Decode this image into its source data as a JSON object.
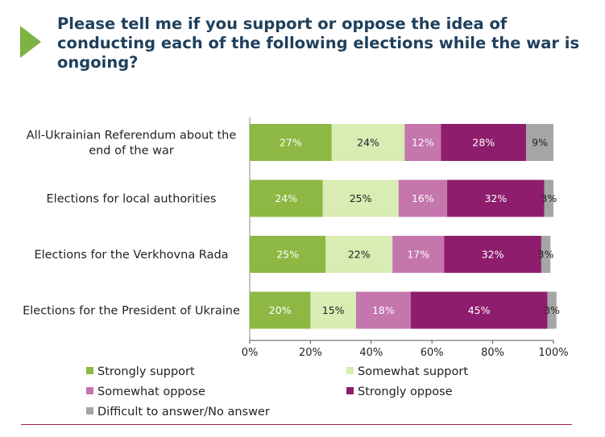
{
  "title": "Please tell me if you support or oppose the idea of conducting each of the following elections while the war is ongoing?",
  "colors": {
    "accent_arrow": "#7cb342",
    "title_text": "#1f3f5c",
    "footer_line": "#9d1e4f"
  },
  "chart_data": {
    "type": "bar",
    "orientation": "horizontal",
    "stacked": true,
    "categories": [
      "All-Ukrainian Referendum about the end of the war",
      "Elections for local authorities",
      "Elections for the Verkhovna Rada",
      "Elections for the President of Ukraine"
    ],
    "series": [
      {
        "name": "Strongly support",
        "color": "#8db843",
        "label_color": "#ffffff",
        "values": [
          27,
          24,
          25,
          20
        ],
        "labels": [
          "27%",
          "24%",
          "25%",
          "20%"
        ]
      },
      {
        "name": "Somewhat support",
        "color": "#d8ecb3",
        "label_color": "#222222",
        "values": [
          24,
          25,
          22,
          15
        ],
        "labels": [
          "24%",
          "25%",
          "22%",
          "15%"
        ]
      },
      {
        "name": "Somewhat oppose",
        "color": "#c476ad",
        "label_color": "#ffffff",
        "values": [
          12,
          16,
          17,
          18
        ],
        "labels": [
          "12%",
          "16%",
          "17%",
          "18%"
        ]
      },
      {
        "name": "Strongly oppose",
        "color": "#8e1e6d",
        "label_color": "#ffffff",
        "values": [
          28,
          32,
          32,
          45
        ],
        "labels": [
          "28%",
          "32%",
          "32%",
          "45%"
        ]
      },
      {
        "name": "Difficult to answer/No answer",
        "color": "#a6a6a6",
        "label_color": "#222222",
        "values": [
          9,
          3,
          3,
          3
        ],
        "labels": [
          "9%",
          "3%",
          "3%",
          "3%"
        ]
      }
    ],
    "xlim": [
      0,
      100
    ],
    "xticks": [
      0,
      20,
      40,
      60,
      80,
      100
    ],
    "xtick_labels": [
      "0%",
      "20%",
      "40%",
      "60%",
      "80%",
      "100%"
    ],
    "legend_position": "bottom",
    "grid": false
  }
}
